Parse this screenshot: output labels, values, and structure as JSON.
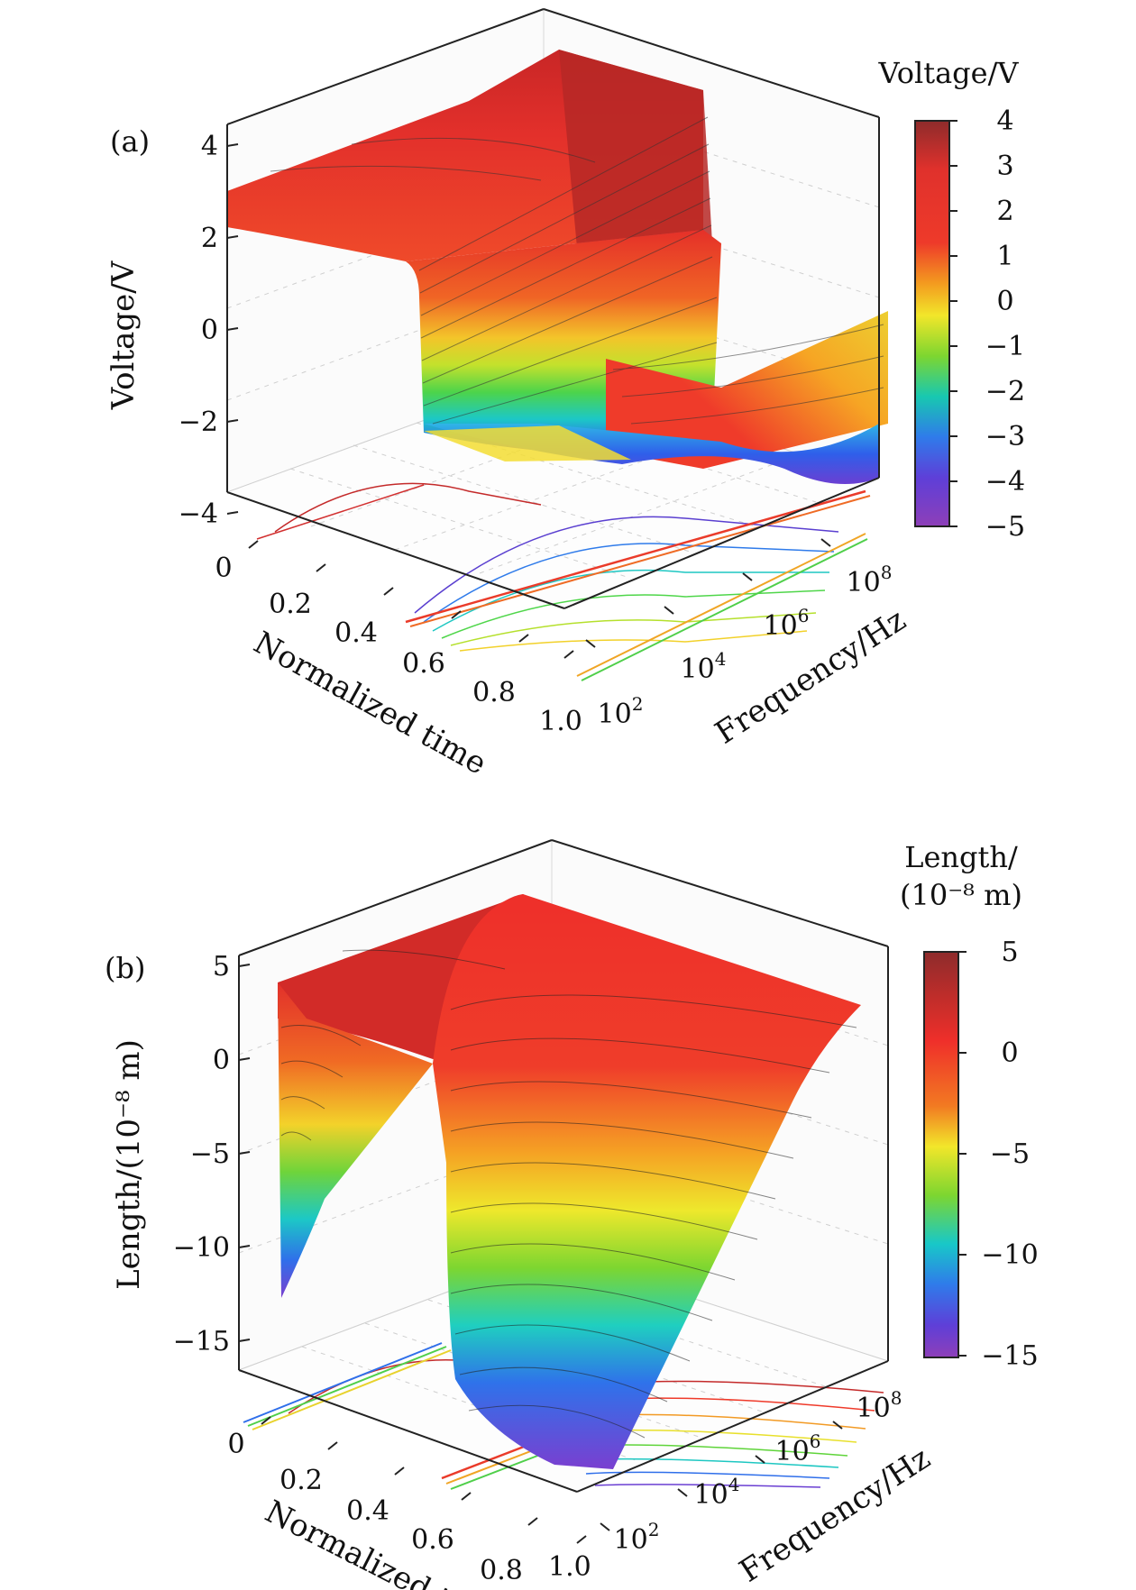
{
  "chart_data": [
    {
      "type": "surface3d",
      "panel_label": "(a)",
      "zlabel": "Voltage/V",
      "xlabel": "Normalized time",
      "ylabel": "Frequency/Hz",
      "xticks": [
        "0",
        "0.2",
        "0.4",
        "0.6",
        "0.8",
        "1.0"
      ],
      "yticks": [
        {
          "base": "10",
          "exp": "2"
        },
        {
          "base": "10",
          "exp": "4"
        },
        {
          "base": "10",
          "exp": "6"
        },
        {
          "base": "10",
          "exp": "8"
        }
      ],
      "zticks": [
        "4",
        "2",
        "0",
        "−2",
        "−4"
      ],
      "zlim": [
        -5,
        4
      ],
      "colorbar": {
        "title": "Voltage/V",
        "ticks": [
          "4",
          "3",
          "2",
          "1",
          "0",
          "−1",
          "−2",
          "−3",
          "−4",
          "−5"
        ],
        "range": [
          -5,
          4
        ]
      },
      "surface_values": {
        "x": [
          0,
          0.4,
          0.5,
          0.6,
          1.0
        ],
        "low_frequency_V": [
          3.0,
          2.8,
          -3.0,
          -3.5,
          -2.5
        ],
        "high_frequency_V": [
          3.8,
          3.8,
          -4.2,
          -4.5,
          2.0
        ]
      }
    },
    {
      "type": "surface3d",
      "panel_label": "(b)",
      "zlabel": "Length/(10⁻⁸ m)",
      "xlabel": "Normalized time",
      "ylabel": "Frequency/Hz",
      "xticks": [
        "0",
        "0.2",
        "0.4",
        "0.6",
        "0.8",
        "1.0"
      ],
      "yticks": [
        {
          "base": "10",
          "exp": "2"
        },
        {
          "base": "10",
          "exp": "4"
        },
        {
          "base": "10",
          "exp": "6"
        },
        {
          "base": "10",
          "exp": "8"
        }
      ],
      "zticks": [
        "5",
        "0",
        "−5",
        "−10",
        "−15"
      ],
      "zlim": [
        -16,
        5
      ],
      "colorbar": {
        "title_line1": "Length/",
        "title_line2": "(10⁻⁸ m)",
        "ticks": [
          "5",
          "0",
          "−5",
          "−10",
          "−15"
        ],
        "range": [
          -15,
          5
        ]
      },
      "surface_values": {
        "x": [
          0,
          0.4,
          0.5,
          0.6,
          1.0
        ],
        "low_frequency_L": [
          -14.0,
          2.0,
          2.0,
          -15.0,
          -2.0
        ],
        "high_frequency_L": [
          3.0,
          4.0,
          4.0,
          4.0,
          3.0
        ]
      }
    }
  ]
}
